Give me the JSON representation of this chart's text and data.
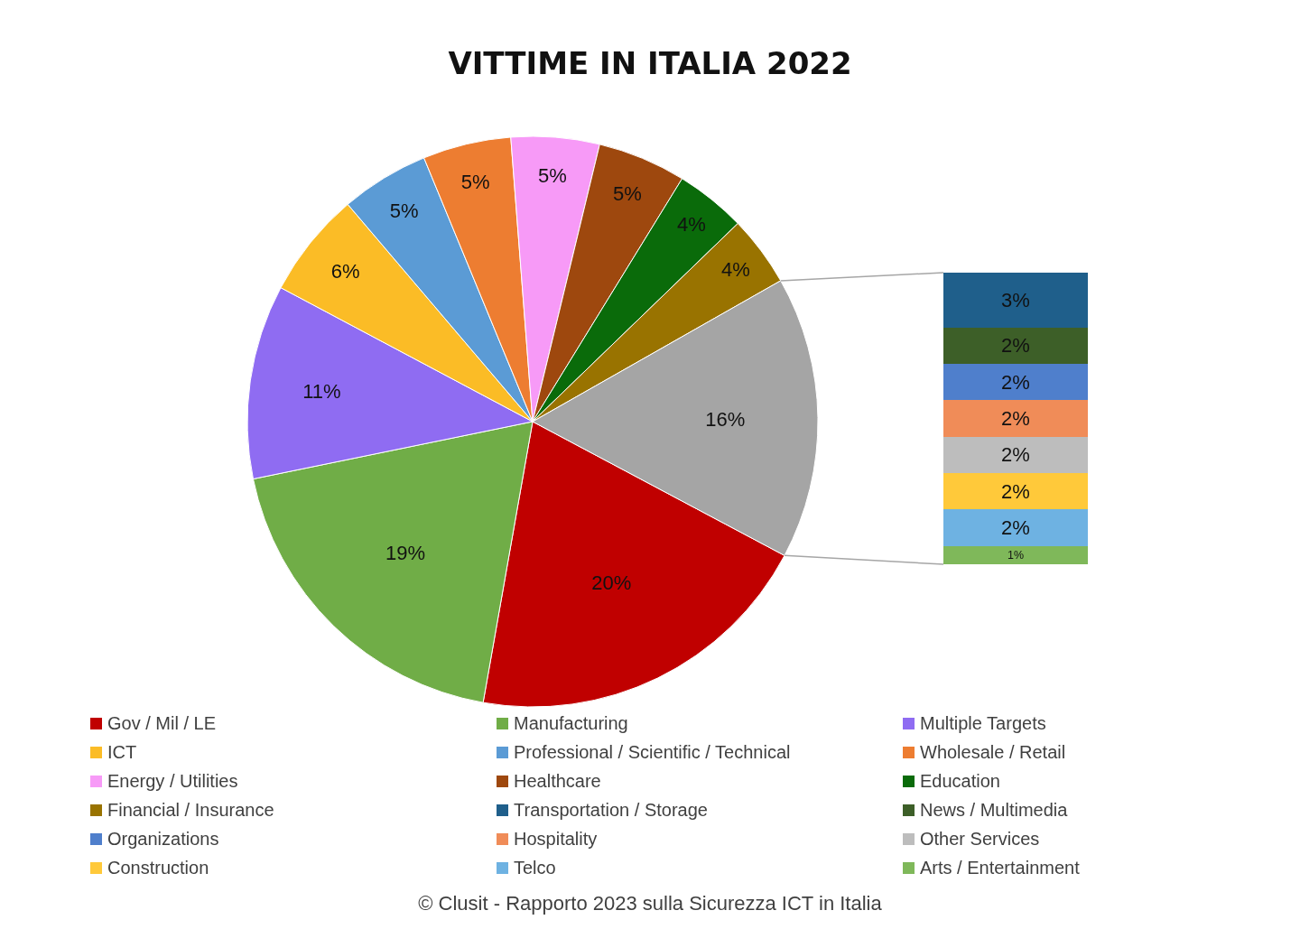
{
  "chart_data": [
    {
      "type": "pie",
      "title": "VITTIME IN ITALIA 2022",
      "categories": [
        "Gov / Mil / LE",
        "Manufacturing",
        "Multiple Targets",
        "ICT",
        "Professional / Scientific / Technical",
        "Wholesale / Retail",
        "Energy / Utilities",
        "Healthcare",
        "Education",
        "Financial / Insurance",
        null
      ],
      "values": [
        20,
        19,
        11,
        6,
        5,
        5,
        5,
        5,
        4,
        4,
        16
      ],
      "value_labels": [
        "20%",
        "19%",
        "11%",
        "6%",
        "5%",
        "5%",
        "5%",
        "5%",
        "4%",
        "4%",
        "16%"
      ],
      "colors": [
        "#c00000",
        "#70ad47",
        "#8f6cf2",
        "#fbbc26",
        "#5b9bd5",
        "#ed7d31",
        "#f79af7",
        "#9e480e",
        "#0a6b0a",
        "#997300",
        "#a5a5a5"
      ],
      "legend": "bottom",
      "annotations": [
        "© Clusit - Rapporto 2023 sulla Sicurezza ICT in Italia"
      ]
    },
    {
      "type": "bar",
      "stacked": true,
      "categories": [
        null
      ],
      "legend": "bottom",
      "series": [
        {
          "name": "Arts / Entertainment",
          "color": "#7fb85a",
          "values": [
            1
          ],
          "value_labels": [
            "1%"
          ]
        },
        {
          "name": "Telco",
          "color": "#6eb2e2",
          "values": [
            2
          ],
          "value_labels": [
            "2%"
          ]
        },
        {
          "name": "Construction",
          "color": "#ffc93a",
          "values": [
            2
          ],
          "value_labels": [
            "2%"
          ]
        },
        {
          "name": "Other Services",
          "color": "#bdbdbd",
          "values": [
            2
          ],
          "value_labels": [
            "2%"
          ]
        },
        {
          "name": "Hospitality",
          "color": "#f08c58",
          "values": [
            2
          ],
          "value_labels": [
            "2%"
          ]
        },
        {
          "name": "Organizations",
          "color": "#4f7fcc",
          "values": [
            2
          ],
          "value_labels": [
            "2%"
          ]
        },
        {
          "name": "News / Multimedia",
          "color": "#3d5f28",
          "values": [
            2
          ],
          "value_labels": [
            "2%"
          ]
        },
        {
          "name": "Transportation / Storage",
          "color": "#1f5f8b",
          "values": [
            3
          ],
          "value_labels": [
            "3%"
          ]
        }
      ]
    }
  ]
}
